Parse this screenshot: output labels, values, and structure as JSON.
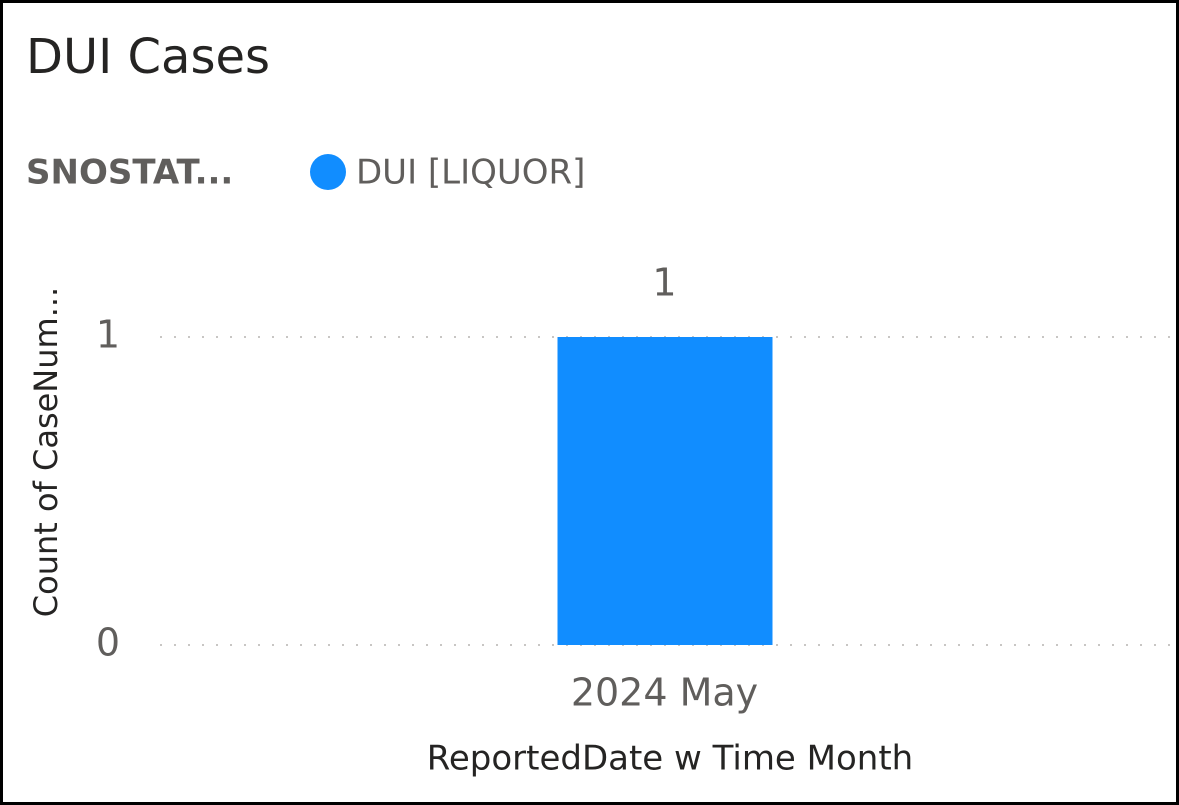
{
  "chart_data": {
    "type": "bar",
    "title": "DUI Cases",
    "legend_title": "SNOSTAT...",
    "categories": [
      "2024 May"
    ],
    "series": [
      {
        "name": "DUI [LIQUOR]",
        "color": "#118DFF",
        "values": [
          1
        ]
      }
    ],
    "x_label": "ReportedDate w Time Month",
    "y_label": "Count of CaseNum...",
    "ylim": [
      0,
      1
    ],
    "yticks": [
      0,
      1
    ],
    "grid": true,
    "data_labels": true
  }
}
